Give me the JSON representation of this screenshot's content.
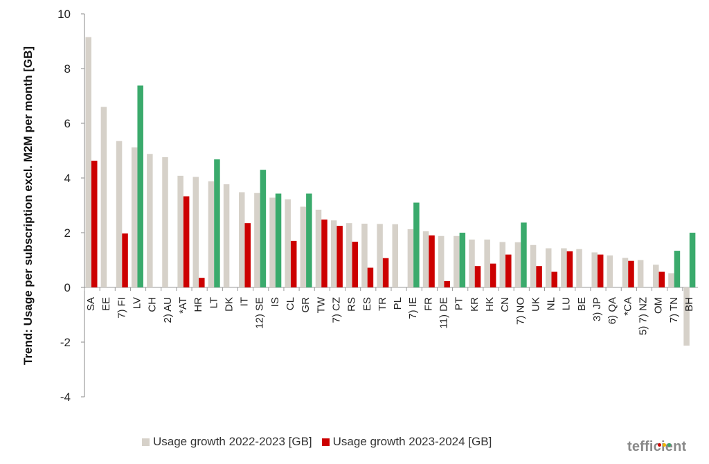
{
  "chart_data": {
    "type": "bar",
    "ylabel": "Trend: Usage per subscription excl. M2M per month [GB]",
    "ylim": [
      -4,
      10
    ],
    "yticks": [
      -4,
      -2,
      0,
      2,
      4,
      6,
      8,
      10
    ],
    "grid": false,
    "legend_position": "bottom",
    "categories": [
      "SA",
      "EE",
      "7) FI",
      "LV",
      "CH",
      "2) AU",
      "*AT",
      "HR",
      "LT",
      "DK",
      "IT",
      "12) SE",
      "IS",
      "CL",
      "GR",
      "TW",
      "7) CZ",
      "RS",
      "ES",
      "TR",
      "PL",
      "7) IE",
      "FR",
      "11) DE",
      "PT",
      "KR",
      "HK",
      "CN",
      "7) NO",
      "UK",
      "NL",
      "LU",
      "BE",
      "3) JP",
      "6) QA",
      "*CA",
      "5) 7) NZ",
      "OM",
      "7) TN",
      "BH"
    ],
    "series": [
      {
        "name": "Usage growth 2022-2023 [GB]",
        "color": "#d6d1c9",
        "values": [
          9.15,
          6.6,
          5.35,
          5.12,
          4.88,
          4.76,
          4.08,
          4.04,
          3.88,
          3.77,
          3.48,
          3.45,
          3.28,
          3.22,
          2.95,
          2.84,
          2.45,
          2.35,
          2.33,
          2.32,
          2.31,
          2.13,
          2.05,
          1.88,
          1.88,
          1.75,
          1.75,
          1.66,
          1.65,
          1.55,
          1.43,
          1.43,
          1.4,
          1.28,
          1.17,
          1.08,
          1.0,
          0.83,
          0.52,
          -2.13
        ]
      },
      {
        "name": "Usage growth 2023-2024 [GB]",
        "color": "#cc0000",
        "highlight_color": "#3aaa6c",
        "values": [
          4.63,
          null,
          1.97,
          7.38,
          null,
          null,
          3.33,
          0.35,
          4.68,
          null,
          2.35,
          4.3,
          3.43,
          1.7,
          3.43,
          2.48,
          2.25,
          1.67,
          0.72,
          1.07,
          null,
          3.1,
          1.9,
          0.23,
          2.0,
          0.78,
          0.87,
          1.2,
          2.37,
          0.78,
          0.57,
          1.32,
          null,
          1.2,
          null,
          0.97,
          null,
          0.57,
          1.34,
          2.0
        ],
        "highlight": [
          false,
          false,
          false,
          true,
          false,
          false,
          false,
          false,
          true,
          false,
          false,
          true,
          true,
          false,
          true,
          false,
          false,
          false,
          false,
          false,
          false,
          true,
          false,
          false,
          true,
          false,
          false,
          false,
          true,
          false,
          false,
          false,
          false,
          false,
          false,
          false,
          false,
          false,
          true,
          true
        ]
      }
    ]
  },
  "legend": {
    "series1": "Usage growth 2022-2023 [GB]",
    "series2": "Usage growth 2023-2024 [GB]"
  },
  "logo": {
    "text": "tefficient",
    "dot_colors": [
      "#cc0000",
      "#f0b400",
      "#3aaa6c"
    ]
  }
}
